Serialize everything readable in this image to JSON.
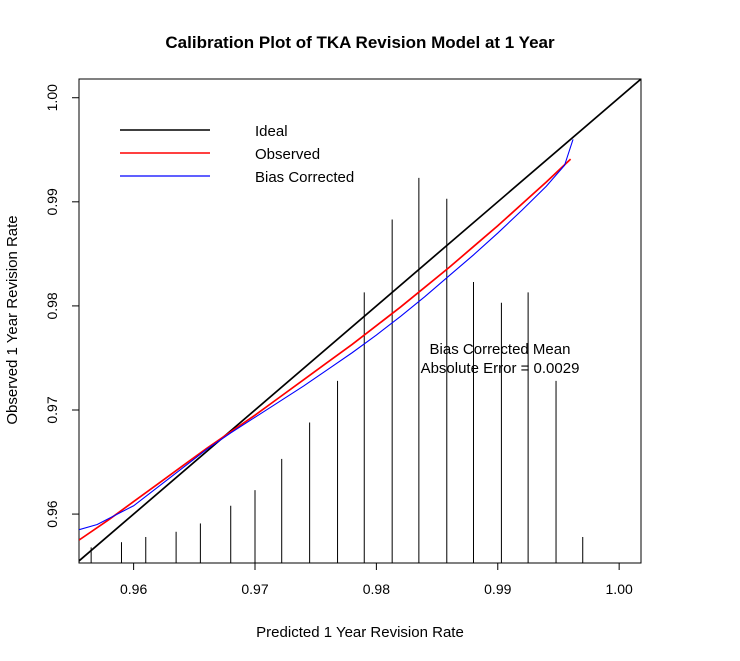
{
  "chart_data": {
    "type": "line",
    "title": "Calibration Plot of TKA Revision Model at 1 Year",
    "xlabel": "Predicted 1 Year Revision Rate",
    "ylabel": "Observed 1 Year Revision Rate",
    "xlim": [
      0.9555,
      1.0018
    ],
    "ylim": [
      0.9553,
      1.0018
    ],
    "xticks": [
      0.96,
      0.97,
      0.98,
      0.99,
      1.0
    ],
    "xtick_labels": [
      "0.96",
      "0.97",
      "0.98",
      "0.99",
      "1.00"
    ],
    "yticks": [
      0.96,
      0.97,
      0.98,
      0.99,
      1.0
    ],
    "ytick_labels": [
      "0.96",
      "0.97",
      "0.98",
      "0.99",
      "1.00"
    ],
    "grid": false,
    "legend_position": "top-left",
    "series": [
      {
        "name": "Ideal",
        "color": "#000000",
        "x": [
          0.9555,
          1.0018
        ],
        "y": [
          0.9555,
          1.0018
        ]
      },
      {
        "name": "Observed",
        "color": "#ff0000",
        "x": [
          0.9555,
          0.958,
          0.96,
          0.962,
          0.964,
          0.966,
          0.968,
          0.97,
          0.972,
          0.974,
          0.976,
          0.978,
          0.98,
          0.982,
          0.984,
          0.986,
          0.988,
          0.99,
          0.992,
          0.994,
          0.996
        ],
        "y": [
          0.9575,
          0.9595,
          0.9612,
          0.9629,
          0.9646,
          0.9663,
          0.9679,
          0.9695,
          0.9712,
          0.9729,
          0.9746,
          0.9763,
          0.9781,
          0.9799,
          0.9818,
          0.9837,
          0.9857,
          0.9877,
          0.9898,
          0.9919,
          0.9941
        ]
      },
      {
        "name": "Bias Corrected",
        "color": "#0000ff",
        "x": [
          0.9555,
          0.957,
          0.96,
          0.962,
          0.964,
          0.966,
          0.968,
          0.97,
          0.972,
          0.974,
          0.976,
          0.978,
          0.98,
          0.982,
          0.984,
          0.986,
          0.988,
          0.99,
          0.992,
          0.994,
          0.9955,
          0.9962
        ],
        "y": [
          0.9585,
          0.959,
          0.9608,
          0.9626,
          0.9644,
          0.9662,
          0.9678,
          0.9693,
          0.9708,
          0.9723,
          0.9739,
          0.9755,
          0.9772,
          0.979,
          0.9809,
          0.9829,
          0.9849,
          0.987,
          0.9892,
          0.9915,
          0.9935,
          0.996
        ]
      }
    ],
    "histogram": {
      "x": [
        0.9565,
        0.959,
        0.961,
        0.9635,
        0.9655,
        0.968,
        0.97,
        0.9722,
        0.9745,
        0.9768,
        0.979,
        0.9813,
        0.9835,
        0.9858,
        0.988,
        0.9903,
        0.9925,
        0.9948,
        0.997
      ],
      "heights": [
        0.15,
        0.2,
        0.25,
        0.3,
        0.38,
        0.55,
        0.7,
        1.0,
        1.35,
        1.75,
        2.6,
        3.3,
        3.7,
        3.5,
        2.7,
        2.5,
        2.6,
        1.75,
        0.25
      ]
    },
    "annotation": [
      "Bias Corrected Mean",
      "Absolute Error = 0.0029"
    ]
  }
}
